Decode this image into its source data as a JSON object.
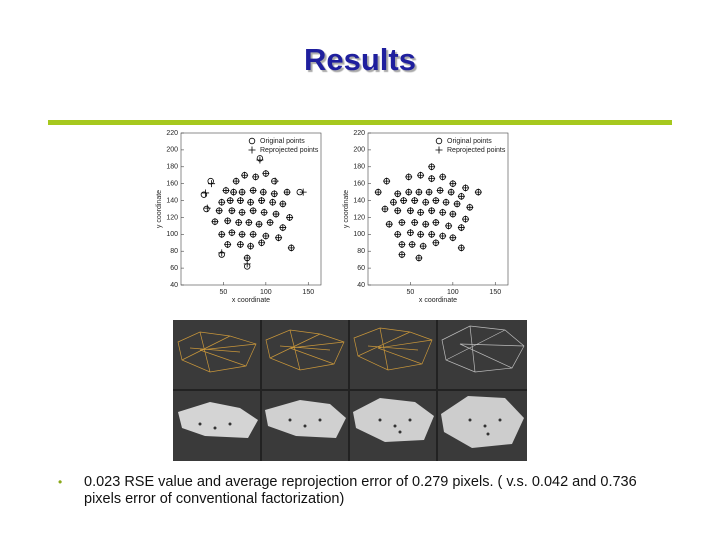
{
  "header": {
    "title": "Results"
  },
  "chart_data": [
    {
      "type": "scatter",
      "xlabel": "x coordinate",
      "ylabel": "y coordinate",
      "xlim": [
        0,
        165
      ],
      "ylim": [
        40,
        220
      ],
      "xticks": [
        50,
        100,
        150
      ],
      "yticks": [
        40,
        60,
        80,
        100,
        120,
        140,
        160,
        180,
        200,
        220
      ],
      "legend": "upper right",
      "series": [
        {
          "name": "Original points",
          "marker": "circle",
          "color": "#000000",
          "x": [
            35,
            27,
            93,
            65,
            75,
            88,
            100,
            110,
            125,
            140,
            53,
            62,
            72,
            85,
            97,
            110,
            48,
            58,
            70,
            82,
            95,
            108,
            120,
            30,
            45,
            60,
            72,
            85,
            98,
            112,
            128,
            40,
            55,
            68,
            80,
            92,
            105,
            120,
            48,
            60,
            72,
            85,
            100,
            115,
            55,
            70,
            82,
            95,
            130,
            48,
            78,
            78
          ],
          "values": [
            163,
            147,
            190,
            163,
            170,
            168,
            172,
            163,
            150,
            150,
            152,
            150,
            150,
            152,
            150,
            148,
            138,
            140,
            140,
            138,
            140,
            138,
            136,
            130,
            128,
            128,
            126,
            128,
            126,
            124,
            120,
            115,
            116,
            114,
            114,
            112,
            114,
            108,
            100,
            102,
            100,
            100,
            98,
            96,
            88,
            88,
            86,
            90,
            84,
            76,
            72,
            62
          ]
        },
        {
          "name": "Reprojected points",
          "marker": "plus",
          "color": "#000000",
          "x": [
            36,
            29,
            93,
            65,
            75,
            88,
            100,
            111,
            125,
            144,
            53,
            62,
            72,
            85,
            97,
            110,
            48,
            58,
            70,
            82,
            95,
            108,
            120,
            31,
            45,
            60,
            72,
            85,
            98,
            112,
            128,
            40,
            55,
            68,
            80,
            92,
            105,
            120,
            48,
            60,
            72,
            85,
            100,
            115,
            55,
            70,
            82,
            95,
            130,
            48,
            78,
            78
          ],
          "values": [
            160,
            149,
            188,
            163,
            170,
            168,
            172,
            163,
            150,
            150,
            152,
            150,
            150,
            152,
            150,
            148,
            138,
            140,
            140,
            138,
            140,
            138,
            136,
            131,
            128,
            128,
            126,
            128,
            126,
            124,
            120,
            115,
            116,
            114,
            114,
            112,
            114,
            108,
            100,
            102,
            100,
            100,
            98,
            96,
            88,
            88,
            86,
            90,
            84,
            78,
            72,
            65
          ]
        }
      ]
    },
    {
      "type": "scatter",
      "xlabel": "x coordinate",
      "ylabel": "y coordinate",
      "xlim": [
        0,
        165
      ],
      "ylim": [
        40,
        220
      ],
      "xticks": [
        50,
        100,
        150
      ],
      "yticks": [
        40,
        60,
        80,
        100,
        120,
        140,
        160,
        180,
        200,
        220
      ],
      "legend": "upper right",
      "series": [
        {
          "name": "Original points",
          "marker": "circle",
          "color": "#000000",
          "x": [
            22,
            12,
            75,
            48,
            62,
            75,
            88,
            100,
            115,
            130,
            35,
            48,
            60,
            72,
            85,
            98,
            110,
            30,
            42,
            55,
            68,
            80,
            92,
            105,
            120,
            20,
            35,
            50,
            62,
            75,
            88,
            100,
            115,
            25,
            40,
            55,
            68,
            80,
            95,
            110,
            35,
            50,
            62,
            75,
            88,
            100,
            40,
            52,
            65,
            80,
            110,
            40,
            60
          ],
          "values": [
            163,
            150,
            180,
            168,
            170,
            166,
            168,
            160,
            155,
            150,
            148,
            150,
            150,
            150,
            152,
            150,
            145,
            138,
            140,
            140,
            138,
            140,
            138,
            136,
            132,
            130,
            128,
            128,
            126,
            128,
            126,
            124,
            118,
            112,
            114,
            114,
            112,
            114,
            110,
            108,
            100,
            102,
            100,
            100,
            98,
            96,
            88,
            88,
            86,
            90,
            84,
            76,
            72
          ]
        },
        {
          "name": "Reprojected points",
          "marker": "plus",
          "color": "#000000",
          "x": [
            22,
            12,
            75,
            48,
            62,
            75,
            88,
            100,
            115,
            130,
            35,
            48,
            60,
            72,
            85,
            98,
            110,
            30,
            42,
            55,
            68,
            80,
            92,
            105,
            120,
            20,
            35,
            50,
            62,
            75,
            88,
            100,
            115,
            25,
            40,
            55,
            68,
            80,
            95,
            110,
            35,
            50,
            62,
            75,
            88,
            100,
            40,
            52,
            65,
            80,
            110,
            40,
            60
          ],
          "values": [
            163,
            150,
            180,
            168,
            170,
            166,
            168,
            160,
            155,
            150,
            148,
            150,
            150,
            150,
            152,
            150,
            145,
            138,
            140,
            140,
            138,
            140,
            138,
            136,
            132,
            130,
            128,
            128,
            126,
            128,
            126,
            124,
            118,
            112,
            114,
            114,
            112,
            114,
            110,
            108,
            100,
            102,
            100,
            100,
            98,
            96,
            88,
            88,
            86,
            90,
            84,
            76,
            72
          ]
        }
      ]
    }
  ],
  "bullets": [
    "0.023 RSE value and average reprojection error of 0.279 pixels. ( v.s. 0.042 and 0.736 pixels error of conventional factorization)"
  ]
}
